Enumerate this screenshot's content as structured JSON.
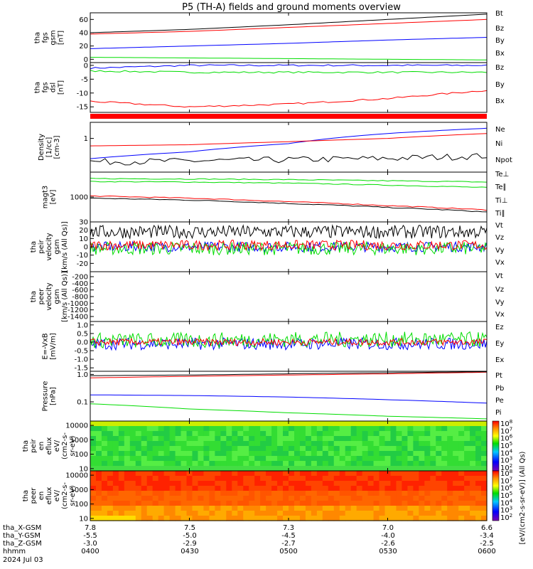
{
  "title": "P5 (TH-A) fields and ground moments overview",
  "colors": {
    "black": "#000000",
    "red": "#ff0000",
    "green": "#00dd00",
    "blue": "#0000ff"
  },
  "panels": [
    {
      "id": "fgs",
      "ylabel": [
        "tha",
        "fgs",
        "gsm",
        "[nT]"
      ],
      "ylim": [
        -5,
        70
      ],
      "ticks": [
        "60",
        "40",
        "20",
        "0"
      ],
      "legend": [
        {
          "label": "Bt",
          "color": "black"
        },
        {
          "label": "Bz",
          "color": "red"
        },
        {
          "label": "By",
          "color": "green"
        },
        {
          "label": "Bx",
          "color": "blue"
        }
      ]
    },
    {
      "id": "fgs_dsl",
      "ylabel": [
        "tha",
        "fgs",
        "dsl",
        "[nT]"
      ],
      "ylim": [
        -17,
        1
      ],
      "ticks": [
        "0",
        "-5",
        "-10",
        "-15"
      ],
      "legend": [
        {
          "label": "Bz",
          "color": "red"
        },
        {
          "label": "By",
          "color": "green"
        },
        {
          "label": "Bx",
          "color": "blue"
        }
      ]
    },
    {
      "id": "density",
      "ylabel": [
        "Density",
        "[1/cc]",
        "[cm-3]"
      ],
      "ylim": [
        0.1,
        3
      ],
      "log": true,
      "ticks": [
        "1"
      ],
      "legend": [
        {
          "label": "Ne",
          "color": "red"
        },
        {
          "label": "Ni",
          "color": "black"
        },
        {
          "label": "Npot",
          "color": "blue"
        }
      ]
    },
    {
      "id": "temp",
      "ylabel": [
        "magt3",
        "[eV]"
      ],
      "ylim": [
        100,
        10000
      ],
      "log": true,
      "ticks": [
        "1000"
      ],
      "legend": [
        {
          "label": "Te⊥",
          "color": "red"
        },
        {
          "label": "Te∥",
          "color": "black"
        },
        {
          "label": "Ti⊥",
          "color": "green"
        },
        {
          "label": "Ti∥",
          "color": "green"
        }
      ]
    },
    {
      "id": "peir_v",
      "ylabel": [
        "tha",
        "peir",
        "velocity",
        "gsm",
        "[km/s (All Qs)]"
      ],
      "ylim": [
        -30,
        30
      ],
      "ticks": [
        "30",
        "20",
        "10",
        "0",
        "-10",
        "-20"
      ],
      "legend": [
        {
          "label": "Vt",
          "color": "black"
        },
        {
          "label": "Vz",
          "color": "red"
        },
        {
          "label": "Vy",
          "color": "green"
        },
        {
          "label": "Vx",
          "color": "blue"
        }
      ]
    },
    {
      "id": "peer_v",
      "ylabel": [
        "tha",
        "peer",
        "velocity",
        "gsm",
        "[km/s (All Qs)]"
      ],
      "ylim": [
        -1550,
        -50
      ],
      "ticks": [
        "-200",
        "-400",
        "-600",
        "-800",
        "-1000",
        "-1200",
        "-1400"
      ],
      "legend": [
        {
          "label": "Vt",
          "color": "black"
        },
        {
          "label": "Vz",
          "color": "red"
        },
        {
          "label": "Vy",
          "color": "green"
        },
        {
          "label": "Vx",
          "color": "blue"
        }
      ]
    },
    {
      "id": "efield",
      "ylabel": [
        "E=-VxB",
        "[mV/m]"
      ],
      "ylim": [
        -1.7,
        1.2
      ],
      "ticks": [
        "1.0",
        "0.5",
        "0.0",
        "-0.5",
        "-1.0",
        "-1.5"
      ],
      "legend": [
        {
          "label": "Ez",
          "color": "red"
        },
        {
          "label": "Ey",
          "color": "green"
        },
        {
          "label": "Ex",
          "color": "blue"
        }
      ]
    },
    {
      "id": "pressure",
      "ylabel": [
        "Pressure",
        "[nPa]"
      ],
      "ylim": [
        0.02,
        1.3
      ],
      "log": true,
      "ticks": [
        "1.0",
        "0.1"
      ],
      "legend": [
        {
          "label": "Pt",
          "color": "black"
        },
        {
          "label": "Pb",
          "color": "red"
        },
        {
          "label": "Pe",
          "color": "green"
        },
        {
          "label": "Pi",
          "color": "blue"
        }
      ]
    },
    {
      "id": "peir_spec",
      "ylabel": [
        "tha",
        "peir",
        "en",
        "eflux",
        "eV/",
        "(cm2-s-",
        "sr-eV)"
      ],
      "ticks": [
        "10000",
        "1000",
        "100",
        "10"
      ]
    },
    {
      "id": "peer_spec",
      "ylabel": [
        "tha",
        "peer",
        "en",
        "eflux",
        "eV/",
        "(cm2-s-",
        "sr-eV)"
      ],
      "ticks": [
        "10000",
        "1000",
        "100",
        "10"
      ]
    }
  ],
  "colorbars": [
    {
      "ticks": [
        "10^8",
        "10^7",
        "10^6",
        "10^5",
        "10^4",
        "10^3",
        "10^2"
      ],
      "label": "[eV/(cm2-s-sr-eV)] (All Qs)"
    },
    {
      "ticks": [
        "10^8",
        "10^7",
        "10^6",
        "10^5",
        "10^4",
        "10^3",
        "10^2"
      ],
      "label": "[eV/(cm2-s-sr-eV)] (All Qs)"
    }
  ],
  "footer": {
    "rows": [
      {
        "label": "tha_X-GSM",
        "values": [
          "7.8",
          "7.5",
          "7.3",
          "7.0",
          "6.6"
        ]
      },
      {
        "label": "tha_Y-GSM",
        "values": [
          "-5.5",
          "-5.0",
          "-4.5",
          "-4.0",
          "-3.4"
        ]
      },
      {
        "label": "tha_Z-GSM",
        "values": [
          "-3.0",
          "-2.9",
          "-2.7",
          "-2.6",
          "-2.5"
        ]
      },
      {
        "label": "hhmm",
        "values": [
          "0400",
          "0430",
          "0500",
          "0530",
          "0600"
        ]
      }
    ],
    "date": "2024 Jul 03"
  },
  "chart_data": [
    {
      "type": "line",
      "panel": "fgs",
      "x_hhmm": [
        "0400",
        "0430",
        "0500",
        "0530",
        "0600"
      ],
      "ylim": [
        -5,
        70
      ],
      "series": [
        {
          "name": "Bt",
          "values": [
            40,
            45,
            52,
            60,
            68
          ]
        },
        {
          "name": "Bz",
          "values": [
            38,
            42,
            48,
            54,
            60
          ]
        },
        {
          "name": "By",
          "values": [
            3,
            2,
            1,
            0,
            -1
          ]
        },
        {
          "name": "Bx",
          "values": [
            16,
            20,
            24,
            29,
            33
          ]
        }
      ]
    },
    {
      "type": "line",
      "panel": "fgs_dsl",
      "x_hhmm": [
        "0400",
        "0430",
        "0500",
        "0530",
        "0600"
      ],
      "ylim": [
        -17,
        1
      ],
      "series": [
        {
          "name": "Bz",
          "values": [
            -13,
            -15,
            -14,
            -12,
            -9
          ]
        },
        {
          "name": "By",
          "values": [
            -2,
            -2.5,
            -2.5,
            -2.5,
            -2.5
          ]
        },
        {
          "name": "Bx",
          "values": [
            -1,
            0,
            0,
            0,
            0
          ]
        }
      ]
    },
    {
      "type": "line",
      "panel": "density",
      "x_hhmm": [
        "0400",
        "0430",
        "0500",
        "0530",
        "0600"
      ],
      "ylim": [
        0.1,
        3
      ],
      "log": true,
      "series": [
        {
          "name": "Ne",
          "values": [
            0.6,
            0.65,
            0.8,
            1.0,
            1.4
          ]
        },
        {
          "name": "Ni",
          "values": [
            0.2,
            0.21,
            0.23,
            0.25,
            0.3
          ]
        },
        {
          "name": "Npot",
          "values": [
            0.25,
            0.4,
            0.7,
            1.4,
            2.0
          ]
        }
      ]
    },
    {
      "type": "line",
      "panel": "temp",
      "x_hhmm": [
        "0400",
        "0430",
        "0500",
        "0530",
        "0600"
      ],
      "ylim": [
        100,
        10000
      ],
      "log": true,
      "series": [
        {
          "name": "Te⊥",
          "values": [
            1100,
            900,
            650,
            450,
            300
          ]
        },
        {
          "name": "Te∥",
          "values": [
            900,
            750,
            550,
            380,
            250
          ]
        },
        {
          "name": "Ti⊥",
          "values": [
            5500,
            5300,
            5000,
            4500,
            4000
          ]
        },
        {
          "name": "Ti∥",
          "values": [
            4200,
            4000,
            3600,
            3000,
            2400
          ]
        }
      ]
    },
    {
      "type": "line",
      "panel": "peir_v",
      "x_hhmm": [
        "0400",
        "0430",
        "0500",
        "0530",
        "0600"
      ],
      "ylim": [
        -30,
        30
      ],
      "series": [
        {
          "name": "Vt",
          "values": [
            18,
            18,
            18,
            18,
            18
          ]
        },
        {
          "name": "Vz",
          "values": [
            2,
            2,
            2,
            2,
            2
          ]
        },
        {
          "name": "Vy",
          "values": [
            -2,
            -2,
            -2,
            -2,
            -2
          ]
        },
        {
          "name": "Vx",
          "values": [
            0,
            0,
            0,
            0,
            0
          ]
        }
      ]
    },
    {
      "type": "line",
      "panel": "efield",
      "x_hhmm": [
        "0400",
        "0430",
        "0500",
        "0530",
        "0600"
      ],
      "ylim": [
        -1.7,
        1.2
      ],
      "series": [
        {
          "name": "Ez",
          "values": [
            0.0,
            0.0,
            0.0,
            0.0,
            0.0
          ]
        },
        {
          "name": "Ey",
          "values": [
            0.1,
            0.1,
            0.15,
            0.15,
            0.15
          ]
        },
        {
          "name": "Ex",
          "values": [
            -0.1,
            -0.1,
            -0.1,
            -0.1,
            -0.1
          ]
        }
      ]
    },
    {
      "type": "line",
      "panel": "pressure",
      "x_hhmm": [
        "0400",
        "0430",
        "0500",
        "0530",
        "0600"
      ],
      "ylim": [
        0.02,
        1.3
      ],
      "log": true,
      "series": [
        {
          "name": "Pt",
          "values": [
            0.9,
            0.95,
            1.05,
            1.15,
            1.25
          ]
        },
        {
          "name": "Pb",
          "values": [
            0.75,
            0.85,
            0.95,
            1.05,
            1.2
          ]
        },
        {
          "name": "Pe",
          "values": [
            0.085,
            0.055,
            0.04,
            0.03,
            0.024
          ]
        },
        {
          "name": "Pi",
          "values": [
            0.18,
            0.17,
            0.15,
            0.12,
            0.09
          ]
        }
      ]
    },
    {
      "type": "heatmap",
      "panel": "peir_spec",
      "y_range_eV": [
        7,
        20000
      ],
      "value_range": "10^2-10^8",
      "description_levels": "mostly 10^5-10^6 (green)"
    },
    {
      "type": "heatmap",
      "panel": "peer_spec",
      "y_range_eV": [
        7,
        20000
      ],
      "value_range": "10^2-10^8",
      "description_levels": "10^7-10^8 (red) at 1000-10000 eV, 10^6-10^7 (orange) below"
    }
  ]
}
